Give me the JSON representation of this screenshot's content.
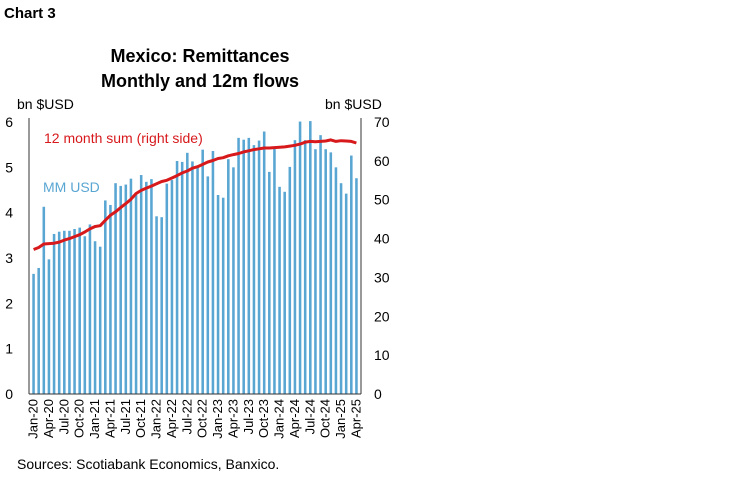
{
  "header": {
    "label": "Chart 3"
  },
  "source": "Sources: Scotiabank Economics, Banxico.",
  "colors": {
    "bars": "#5aa6d3",
    "line": "#d7191c",
    "axis": "#333333"
  },
  "chart_data": {
    "type": "bar+line",
    "title": [
      "Mexico: Remittances",
      "Monthly and 12m flows"
    ],
    "y_left": {
      "unit": "bn $USD",
      "lim": [
        0,
        6
      ],
      "ticks": [
        0,
        1,
        2,
        3,
        4,
        5,
        6
      ]
    },
    "y_right": {
      "unit": "bn $USD",
      "lim": [
        0,
        70
      ],
      "ticks": [
        0,
        10,
        20,
        30,
        40,
        50,
        60,
        70
      ]
    },
    "x_tick_labels": [
      "Jan-20",
      "Apr-20",
      "Jul-20",
      "Oct-20",
      "Jan-21",
      "Apr-21",
      "Jul-21",
      "Oct-21",
      "Jan-22",
      "Apr-22",
      "Jul-22",
      "Oct-22",
      "Jan-23",
      "Apr-23",
      "Jul-23",
      "Oct-23",
      "Jan-24",
      "Apr-24",
      "Jul-24",
      "Oct-24",
      "Jan-25",
      "Apr-25"
    ],
    "annotations": [
      {
        "text": "12 month sum (right side)",
        "series": "12m"
      },
      {
        "text": "MM USD",
        "series": "mm"
      }
    ],
    "series": [
      {
        "name": "MM USD",
        "axis": "left",
        "type": "bar",
        "values": [
          2.65,
          2.78,
          4.13,
          2.97,
          3.53,
          3.58,
          3.6,
          3.6,
          3.64,
          3.67,
          3.48,
          3.74,
          3.37,
          3.25,
          4.27,
          4.17,
          4.65,
          4.59,
          4.62,
          4.75,
          4.4,
          4.83,
          4.68,
          4.74,
          3.92,
          3.9,
          4.64,
          4.72,
          5.14,
          5.12,
          5.32,
          5.13,
          5.04,
          5.39,
          4.8,
          5.36,
          4.39,
          4.33,
          5.18,
          5.0,
          5.65,
          5.61,
          5.65,
          5.49,
          5.59,
          5.79,
          4.9,
          5.43,
          4.57,
          4.46,
          5.01,
          5.6,
          6.01,
          5.6,
          6.02,
          5.4,
          5.71,
          5.4,
          5.33,
          5.0,
          4.65,
          4.42,
          5.26,
          4.76
        ]
      },
      {
        "name": "12 month sum (right side)",
        "axis": "right",
        "type": "line",
        "values": [
          37.2,
          37.7,
          38.6,
          38.7,
          38.8,
          39.1,
          39.6,
          40.0,
          40.5,
          41.0,
          41.7,
          42.5,
          43.1,
          43.3,
          44.7,
          46.0,
          46.9,
          48.0,
          49.0,
          50.1,
          51.6,
          52.4,
          53.0,
          53.5,
          54.1,
          54.7,
          55.0,
          55.6,
          56.2,
          56.9,
          57.4,
          58.1,
          58.5,
          59.1,
          59.7,
          60.1,
          60.6,
          60.8,
          61.3,
          61.6,
          61.9,
          62.3,
          62.6,
          62.9,
          63.1,
          63.3,
          63.3,
          63.4,
          63.5,
          63.6,
          63.8,
          64.0,
          64.3,
          64.8,
          65.0,
          64.9,
          65.0,
          65.1,
          65.4,
          65.0,
          65.2,
          65.1,
          65.0,
          64.6
        ]
      }
    ],
    "grid": false,
    "legend": "inline"
  }
}
